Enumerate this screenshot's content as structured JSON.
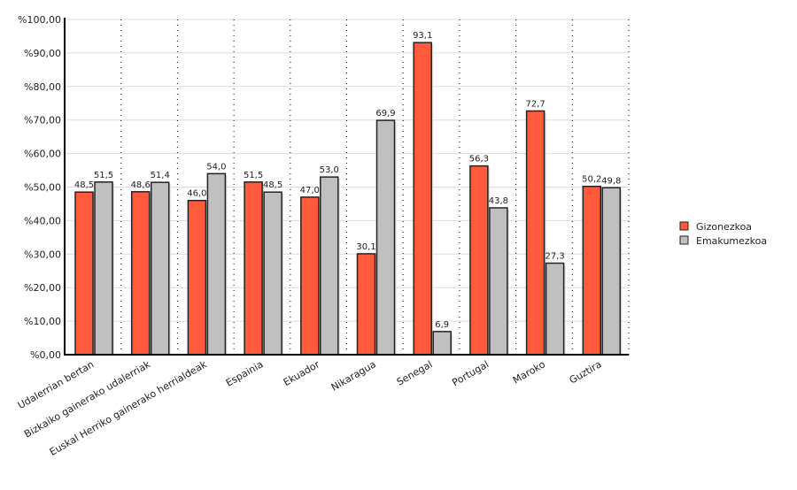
{
  "chart_data": {
    "type": "bar",
    "title": "",
    "xlabel": "",
    "ylabel": "",
    "ylim": [
      0,
      100
    ],
    "yticks": [
      "%0,00",
      "%10,00",
      "%20,00",
      "%30,00",
      "%40,00",
      "%50,00",
      "%60,00",
      "%70,00",
      "%80,00",
      "%90,00",
      "%100,00"
    ],
    "grid": true,
    "legend_position": "right",
    "categories": [
      "Udalerrian bertan",
      "Bizkaiko gainerako udalerriak",
      "Euskal Herriko gainerako herrialdeak",
      "Espainia",
      "Ekuador",
      "Nikaragua",
      "Senegal",
      "Portugal",
      "Maroko",
      "Guztira"
    ],
    "series": [
      {
        "name": "Gizonezkoa",
        "color": "#ff5a3c",
        "values": [
          48.5,
          48.6,
          46.0,
          51.5,
          47.0,
          30.1,
          93.1,
          56.3,
          72.7,
          50.2
        ],
        "labels": [
          "48,5",
          "48,6",
          "46,0",
          "51,5",
          "47,0",
          "30,1",
          "93,1",
          "56,3",
          "72,7",
          "50,2"
        ]
      },
      {
        "name": "Emakumezkoa",
        "color": "#c0c0c0",
        "values": [
          51.5,
          51.4,
          54.0,
          48.5,
          53.0,
          69.9,
          6.9,
          43.8,
          27.3,
          49.8
        ],
        "labels": [
          "51,5",
          "51,4",
          "54,0",
          "48,5",
          "53,0",
          "69,9",
          "6,9",
          "43,8",
          "27,3",
          "49,8"
        ]
      }
    ]
  }
}
